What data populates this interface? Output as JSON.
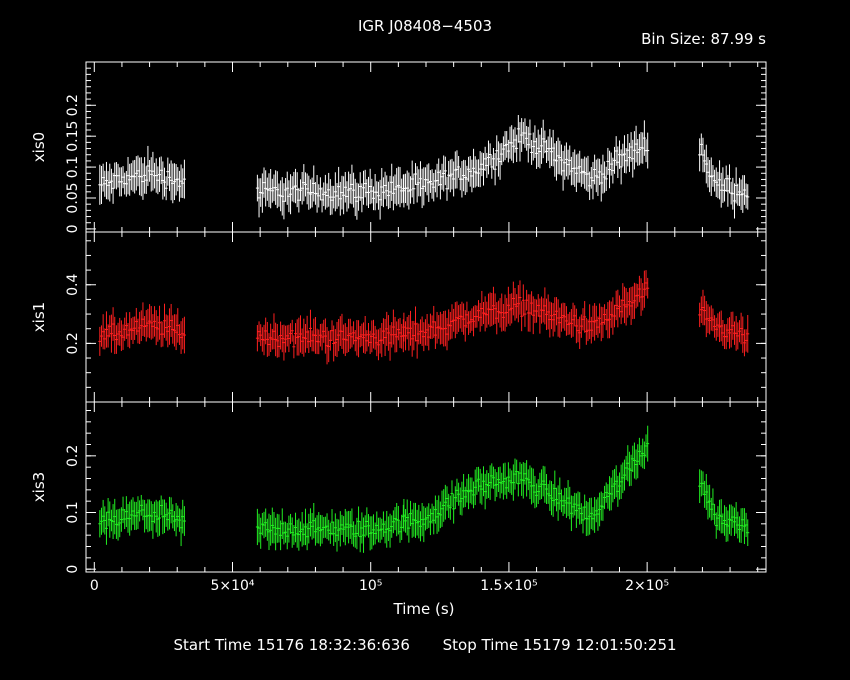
{
  "title": "IGR J08408−4503",
  "bin_size": "Bin Size: 87.99 s",
  "footer": {
    "start_time": "Start Time 15176 18:32:36:636",
    "stop_time": "Stop Time 15179 12:01:50:251"
  },
  "chart_data": {
    "type": "scatter",
    "xlabel": "Time (s)",
    "xlim": [
      -3000,
      243000
    ],
    "xticks": [
      {
        "value": 0,
        "label": "0"
      },
      {
        "value": 50000,
        "label": "5×10⁴"
      },
      {
        "value": 100000,
        "label": "10⁵"
      },
      {
        "value": 150000,
        "label": "1.5×10⁵"
      },
      {
        "value": 200000,
        "label": "2×10⁵"
      }
    ],
    "segments_s": [
      [
        2000,
        33000
      ],
      [
        59000,
        112000
      ],
      [
        112000,
        200500
      ],
      [
        219000,
        236500
      ]
    ],
    "panels": [
      {
        "name": "xis0",
        "color": "#ffffff",
        "ylim": [
          -0.005,
          0.27
        ],
        "yticks": [
          {
            "value": 0,
            "label": "0"
          },
          {
            "value": 0.05,
            "label": "0.05"
          },
          {
            "value": 0.1,
            "label": "0.1"
          },
          {
            "value": 0.15,
            "label": "0.15"
          },
          {
            "value": 0.2,
            "label": "0.2"
          }
        ],
        "minor_step": 0.01,
        "err": 0.025,
        "profile": [
          [
            2000,
            0.07
          ],
          [
            20000,
            0.09
          ],
          [
            33000,
            0.075
          ],
          [
            59000,
            0.06
          ],
          [
            100000,
            0.06
          ],
          [
            120000,
            0.07
          ],
          [
            140000,
            0.1
          ],
          [
            155000,
            0.15
          ],
          [
            170000,
            0.11
          ],
          [
            180000,
            0.08
          ],
          [
            200000,
            0.14
          ],
          [
            219000,
            0.13
          ],
          [
            225000,
            0.07
          ],
          [
            236500,
            0.06
          ]
        ]
      },
      {
        "name": "xis1",
        "color": "#ff2020",
        "ylim": [
          0.0,
          0.58
        ],
        "yticks": [
          {
            "value": 0.2,
            "label": "0.2"
          },
          {
            "value": 0.4,
            "label": "0.4"
          }
        ],
        "minor_step": 0.05,
        "err": 0.05,
        "profile": [
          [
            2000,
            0.22
          ],
          [
            20000,
            0.26
          ],
          [
            33000,
            0.24
          ],
          [
            59000,
            0.22
          ],
          [
            100000,
            0.22
          ],
          [
            120000,
            0.24
          ],
          [
            140000,
            0.3
          ],
          [
            155000,
            0.33
          ],
          [
            170000,
            0.28
          ],
          [
            180000,
            0.25
          ],
          [
            200000,
            0.38
          ],
          [
            219000,
            0.3
          ],
          [
            225000,
            0.25
          ],
          [
            236500,
            0.22
          ]
        ]
      },
      {
        "name": "xis3",
        "color": "#22ee22",
        "ylim": [
          -0.005,
          0.295
        ],
        "yticks": [
          {
            "value": 0,
            "label": "0"
          },
          {
            "value": 0.1,
            "label": "0.1"
          },
          {
            "value": 0.2,
            "label": "0.2"
          }
        ],
        "minor_step": 0.02,
        "err": 0.025,
        "profile": [
          [
            2000,
            0.08
          ],
          [
            20000,
            0.1
          ],
          [
            33000,
            0.08
          ],
          [
            59000,
            0.07
          ],
          [
            100000,
            0.07
          ],
          [
            120000,
            0.09
          ],
          [
            140000,
            0.15
          ],
          [
            155000,
            0.16
          ],
          [
            170000,
            0.12
          ],
          [
            180000,
            0.09
          ],
          [
            200000,
            0.22
          ],
          [
            219000,
            0.16
          ],
          [
            225000,
            0.09
          ],
          [
            236500,
            0.08
          ]
        ]
      }
    ]
  }
}
